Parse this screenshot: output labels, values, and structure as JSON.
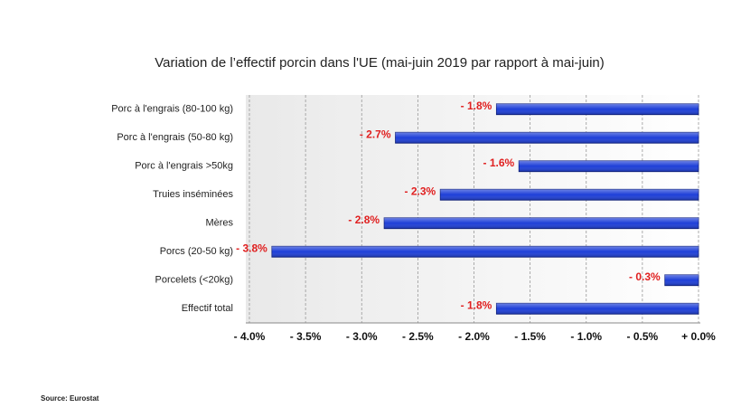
{
  "chart_data": {
    "type": "hbar",
    "title": "Variation de l’effectif porcin dans l'UE (mai-juin 2019 par rapport à mai-juin)",
    "categories": [
      "Porc à l'engrais (80-100 kg)",
      "Porc à l'engrais (50-80 kg)",
      "Porc à l'engrais >50kg",
      "Truies inséminées",
      "Mères",
      "Porcs (20-50 kg)",
      "Porcelets (<20kg)",
      "Effectif total"
    ],
    "values": [
      -1.8,
      -2.7,
      -1.6,
      -2.3,
      -2.8,
      -3.8,
      -0.3,
      -1.8
    ],
    "value_labels": [
      "- 1.8%",
      "- 2.7%",
      "- 1.6%",
      "- 2.3%",
      "- 2.8%",
      "- 3.8%",
      "- 0.3%",
      "- 1.8%"
    ],
    "color": "#1e3fd8",
    "xlim": [
      -4.0,
      0.0
    ],
    "xticks": [
      {
        "value": -4.0,
        "label": "- 4.0%"
      },
      {
        "value": -3.5,
        "label": "- 3.5%"
      },
      {
        "value": -3.0,
        "label": "- 3.0%"
      },
      {
        "value": -2.5,
        "label": "- 2.5%"
      },
      {
        "value": -2.0,
        "label": "- 2.0%"
      },
      {
        "value": -1.5,
        "label": "- 1.5%"
      },
      {
        "value": -1.0,
        "label": "- 1.0%"
      },
      {
        "value": -0.5,
        "label": "- 0.5%"
      },
      {
        "value": 0.0,
        "label": "+ 0.0%"
      }
    ],
    "grid": true,
    "source": "Source: Eurostat"
  }
}
